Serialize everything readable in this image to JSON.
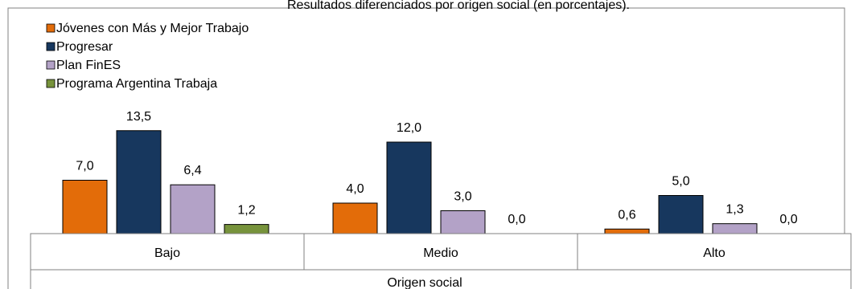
{
  "chart_data": {
    "type": "bar",
    "title": "Resultados diferenciados por origen social (en porcentajes).",
    "xlabel": "Origen social",
    "ylabel": "",
    "categories": [
      "Bajo",
      "Medio",
      "Alto"
    ],
    "series": [
      {
        "name": "Jóvenes con Más y Mejor Trabajo",
        "color": "#E36C09",
        "values": [
          7.0,
          4.0,
          0.6
        ],
        "labels": [
          "7,0",
          "4,0",
          "0,6"
        ]
      },
      {
        "name": "Progresar",
        "color": "#17375E",
        "values": [
          13.5,
          12.0,
          5.0
        ],
        "labels": [
          "13,5",
          "12,0",
          "5,0"
        ]
      },
      {
        "name": "Plan FinES",
        "color": "#B3A2C7",
        "values": [
          6.4,
          3.0,
          1.3
        ],
        "labels": [
          "6,4",
          "3,0",
          "1,3"
        ]
      },
      {
        "name": "Programa Argentina Trabaja",
        "color": "#77933C",
        "values": [
          1.2,
          0.0,
          0.0
        ],
        "labels": [
          "1,2",
          "0,0",
          "0,0"
        ]
      }
    ],
    "legend_position": "top-left",
    "grid": false
  }
}
